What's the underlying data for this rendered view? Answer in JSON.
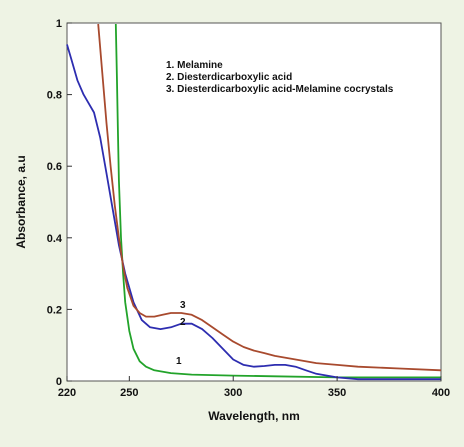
{
  "chart_data": {
    "type": "line",
    "title": "",
    "xlabel": "Wavelength, nm",
    "ylabel": "Absorbance, a.u",
    "xlim": [
      220,
      400
    ],
    "ylim": [
      0,
      1
    ],
    "x_ticks": [
      220,
      250,
      300,
      350,
      400
    ],
    "y_ticks": [
      0,
      0.2,
      0.4,
      0.6,
      0.8,
      1
    ],
    "x_tick_labels": [
      "220",
      "250",
      "300",
      "350",
      "400"
    ],
    "y_tick_labels": [
      "0",
      "0.2",
      "0.4",
      "0.6",
      "0.8",
      "1"
    ],
    "grid": false,
    "legend_position": "top-right",
    "legend": [
      "1. Melamine",
      "2. Diesterdicarboxylic acid",
      "3. Diesterdicarboxylic acid-Melamine cocrystals"
    ],
    "series": [
      {
        "label": "1",
        "color": "#22a32a",
        "x": [
          243.5,
          244,
          244.5,
          245,
          246,
          247,
          248,
          250,
          252,
          255,
          258,
          262,
          270,
          280,
          300,
          320,
          350,
          400
        ],
        "y": [
          1.0,
          0.85,
          0.7,
          0.56,
          0.4,
          0.3,
          0.22,
          0.14,
          0.09,
          0.055,
          0.04,
          0.03,
          0.022,
          0.018,
          0.015,
          0.013,
          0.01,
          0.01
        ]
      },
      {
        "label": "2",
        "color": "#2d2db0",
        "x": [
          220,
          222,
          225,
          228,
          230,
          233,
          236,
          239,
          242,
          245,
          248,
          252,
          256,
          260,
          265,
          270,
          275,
          280,
          285,
          290,
          295,
          300,
          305,
          310,
          315,
          320,
          325,
          330,
          335,
          340,
          350,
          360,
          380,
          400
        ],
        "y": [
          0.94,
          0.9,
          0.84,
          0.8,
          0.78,
          0.75,
          0.68,
          0.58,
          0.48,
          0.38,
          0.3,
          0.22,
          0.17,
          0.15,
          0.145,
          0.15,
          0.16,
          0.16,
          0.145,
          0.12,
          0.09,
          0.06,
          0.045,
          0.04,
          0.042,
          0.045,
          0.045,
          0.04,
          0.03,
          0.02,
          0.01,
          0.005,
          0.005,
          0.005
        ]
      },
      {
        "label": "3",
        "color": "#a84a2e",
        "x": [
          235,
          237,
          239,
          241,
          243,
          245,
          247,
          249,
          252,
          255,
          258,
          262,
          266,
          270,
          275,
          280,
          285,
          290,
          295,
          300,
          305,
          310,
          315,
          320,
          330,
          340,
          350,
          360,
          380,
          400
        ],
        "y": [
          1.0,
          0.86,
          0.72,
          0.6,
          0.49,
          0.4,
          0.32,
          0.26,
          0.21,
          0.19,
          0.18,
          0.18,
          0.185,
          0.19,
          0.19,
          0.185,
          0.17,
          0.15,
          0.13,
          0.11,
          0.095,
          0.085,
          0.078,
          0.07,
          0.06,
          0.05,
          0.045,
          0.04,
          0.035,
          0.03
        ]
      }
    ]
  }
}
